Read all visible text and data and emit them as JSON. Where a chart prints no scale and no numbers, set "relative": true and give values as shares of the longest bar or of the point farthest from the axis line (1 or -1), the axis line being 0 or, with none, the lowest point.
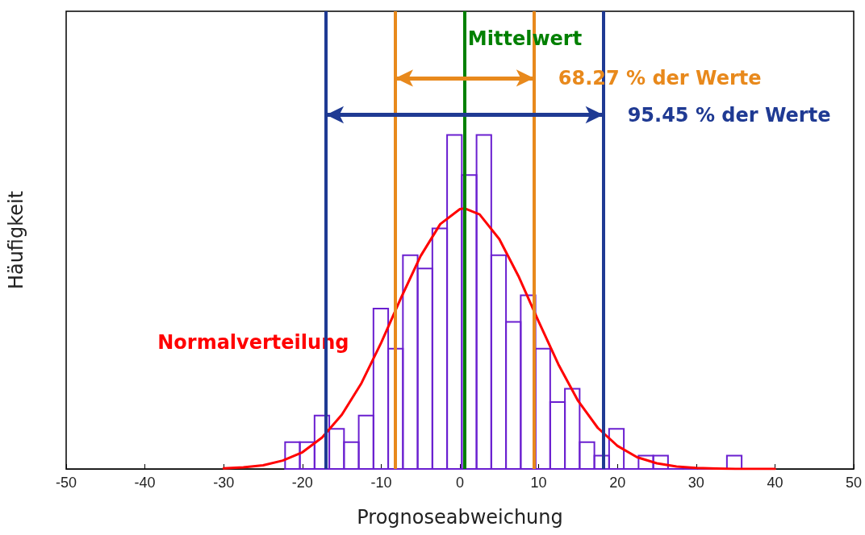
{
  "chart_data": {
    "type": "histogram",
    "relative": true,
    "xlabel": "Prognoseabweichung",
    "ylabel": "Häufigkeit",
    "xlim": [
      -50,
      50
    ],
    "xticks": [
      -50,
      -40,
      -30,
      -20,
      -10,
      0,
      10,
      20,
      30,
      40,
      50
    ],
    "grid": false,
    "legend": false,
    "bins": [
      -22.2,
      -20.33,
      -18.46,
      -16.59,
      -14.72,
      -12.85,
      -10.98,
      -9.11,
      -7.24,
      -5.37,
      -3.5,
      -1.63,
      0.24,
      2.11,
      3.98,
      5.85,
      7.72,
      9.59,
      11.46,
      13.33,
      15.2,
      17.07,
      18.94,
      20.81,
      22.68,
      24.55,
      26.42,
      28.29,
      30.16,
      32.03,
      33.9,
      35.77
    ],
    "values": [
      0.08,
      0.08,
      0.16,
      0.12,
      0.08,
      0.16,
      0.48,
      0.36,
      0.64,
      0.6,
      0.72,
      1,
      0.88,
      1,
      0.64,
      0.44,
      0.52,
      0.36,
      0.2,
      0.24,
      0.08,
      0.04,
      0.12,
      0,
      0.04,
      0.04,
      0,
      0,
      0,
      0,
      0.04
    ],
    "color": "#6a1fd0",
    "series": [
      {
        "type": "line",
        "name": "Normalverteilung",
        "color": "#ff0000",
        "x": [
          -30,
          -27.5,
          -25,
          -22.5,
          -20,
          -17.5,
          -15,
          -12.5,
          -10,
          -7.5,
          -5,
          -2.5,
          0,
          0.6,
          2.5,
          5,
          7.5,
          10,
          12.5,
          15,
          17.5,
          20,
          22.5,
          25,
          27.5,
          30,
          32.5,
          35,
          37.5,
          40
        ],
        "values": [
          0.002,
          0.005,
          0.011,
          0.025,
          0.05,
          0.094,
          0.162,
          0.257,
          0.378,
          0.511,
          0.637,
          0.733,
          0.778,
          0.78,
          0.762,
          0.688,
          0.574,
          0.441,
          0.313,
          0.204,
          0.123,
          0.069,
          0.035,
          0.017,
          0.007,
          0.003,
          0.001,
          0,
          0,
          0
        ]
      }
    ],
    "marker": "none",
    "line_style": "solid",
    "ref_lines": [
      {
        "axis": "x",
        "value": 0.6,
        "label": "Mittelwert",
        "color": "#008000"
      },
      {
        "axis": "x",
        "value": -8.2,
        "color": "#e8891c"
      },
      {
        "axis": "x",
        "value": 9.4,
        "color": "#e8891c"
      },
      {
        "axis": "x",
        "value": -17,
        "color": "#1f3a93"
      },
      {
        "axis": "x",
        "value": 18.2,
        "color": "#1f3a93"
      }
    ],
    "annotations": [
      {
        "text": "68.27 % der Werte",
        "x": 9.4,
        "y": 1.17
      },
      {
        "text": "95.45 % der Werte",
        "x": 18.2,
        "y": 1.06
      }
    ]
  }
}
